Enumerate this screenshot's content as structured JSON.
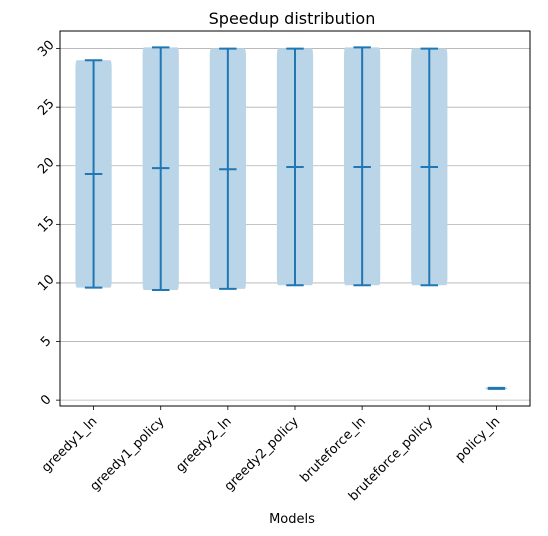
{
  "chart_data": {
    "type": "violin",
    "title": "Speedup distribution",
    "xlabel": "Models",
    "ylabel": "",
    "ylim": [
      -0.5,
      31.5
    ],
    "yticks": [
      0,
      5,
      10,
      15,
      20,
      25,
      30
    ],
    "grid": "y",
    "categories": [
      "greedy1_ln",
      "greedy1_policy",
      "greedy2_ln",
      "greedy2_policy",
      "bruteforce_ln",
      "bruteforce_policy",
      "policy_ln"
    ],
    "series": [
      {
        "category": "greedy1_ln",
        "min": 9.6,
        "mean": 19.3,
        "max": 29.0
      },
      {
        "category": "greedy1_policy",
        "min": 9.4,
        "mean": 19.8,
        "max": 30.1
      },
      {
        "category": "greedy2_ln",
        "min": 9.5,
        "mean": 19.7,
        "max": 30.0
      },
      {
        "category": "greedy2_policy",
        "min": 9.8,
        "mean": 19.9,
        "max": 30.0
      },
      {
        "category": "bruteforce_ln",
        "min": 9.8,
        "mean": 19.9,
        "max": 30.1
      },
      {
        "category": "bruteforce_policy",
        "min": 9.8,
        "mean": 19.9,
        "max": 30.0
      },
      {
        "category": "policy_ln",
        "min": 1.0,
        "mean": 1.0,
        "max": 1.0
      }
    ],
    "colors": {
      "body": "#bad4e8",
      "lines": "#1f77b4",
      "grid": "#b0b0b0"
    }
  }
}
